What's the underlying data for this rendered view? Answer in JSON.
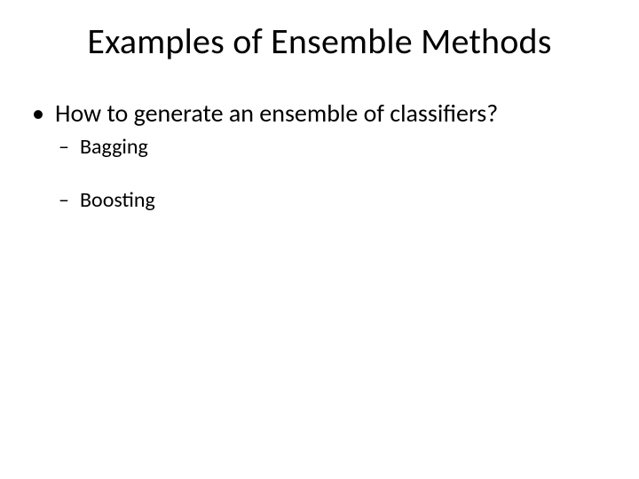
{
  "slide": {
    "title": "Examples of Ensemble Methods",
    "background_color": "#ffffff",
    "text_color": "#000000",
    "title_fontsize": 40,
    "body": {
      "lvl1_fontsize": 28,
      "lvl2_fontsize": 24,
      "items": [
        {
          "text": "How to generate an ensemble of classifiers?",
          "children": [
            {
              "text": "Bagging"
            },
            {
              "text": "Boosting"
            }
          ]
        }
      ]
    }
  }
}
